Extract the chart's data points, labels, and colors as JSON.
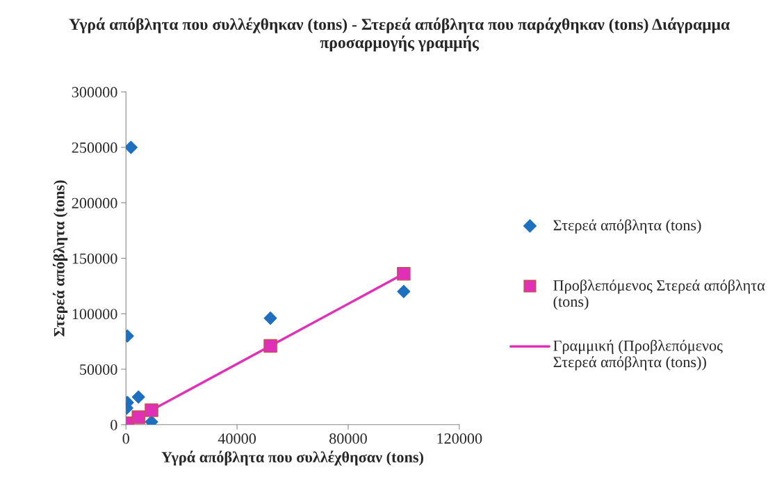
{
  "chart_data": {
    "type": "scatter",
    "title": "Υγρά απόβλητα που συλλέχθηκαν (tons) - Στερεά απόβλητα που παράχθηκαν (tons) Διάγραμμα προσαρμογής γραμμής",
    "xlabel": "Υγρά απόβλητα που συλλέχθησαν (tons)",
    "ylabel": "Στερεά απόβλητα (tons)",
    "x": [
      1800,
      500,
      500,
      4500,
      300,
      9200,
      52000,
      100000
    ],
    "series": [
      {
        "name": "Στερεά απόβλητα (tons)",
        "marker": "diamond",
        "color": "#1f6fc0",
        "values": [
          250000,
          80000,
          20000,
          25000,
          15000,
          2500,
          96000,
          120000
        ]
      },
      {
        "name": "Προβλεπόμενος Στερεά απόβλητα (tons)",
        "marker": "square",
        "color": "#e030b8",
        "x": [
          500,
          4500,
          9200,
          52000,
          100000
        ],
        "values": [
          1300,
          6700,
          13000,
          71000,
          136000
        ]
      },
      {
        "name": "Γραμμική (Προβλεπόμενος Στερεά απόβλητα (tons))",
        "type": "line",
        "marker": "none",
        "color": "#e030b8",
        "x": [
          200,
          100000
        ],
        "values": [
          900,
          136000
        ]
      }
    ],
    "xlim": [
      0,
      120000
    ],
    "xticks": [
      0,
      40000,
      80000,
      120000
    ],
    "ylim": [
      0,
      300000
    ],
    "yticks": [
      0,
      50000,
      100000,
      150000,
      200000,
      250000,
      300000
    ],
    "grid": false,
    "legend": "right"
  }
}
